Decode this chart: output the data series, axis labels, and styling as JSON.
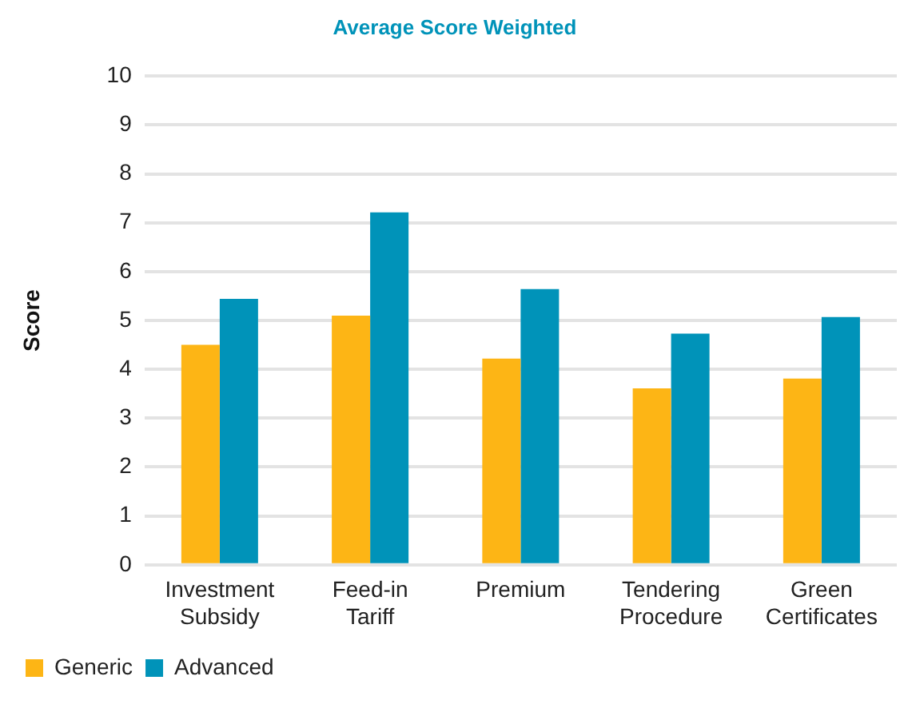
{
  "chart_data": {
    "type": "bar",
    "title": "Average Score Weighted",
    "ylabel": "Score",
    "categories": [
      "Investment Subsidy",
      "Feed-in Tariff",
      "Premium",
      "Tendering Procedure",
      "Green Certificates"
    ],
    "series": [
      {
        "name": "Generic",
        "color": "#fdb515",
        "values": [
          4.5,
          5.1,
          4.22,
          3.61,
          3.81
        ]
      },
      {
        "name": "Advanced",
        "color": "#0093b9",
        "values": [
          5.44,
          7.21,
          5.64,
          4.73,
          5.07
        ]
      }
    ],
    "ylim": [
      0,
      10
    ],
    "yticks": [
      0,
      1,
      2,
      3,
      4,
      5,
      6,
      7,
      8,
      9,
      10
    ],
    "grid": "y",
    "legend": "bottom left"
  }
}
